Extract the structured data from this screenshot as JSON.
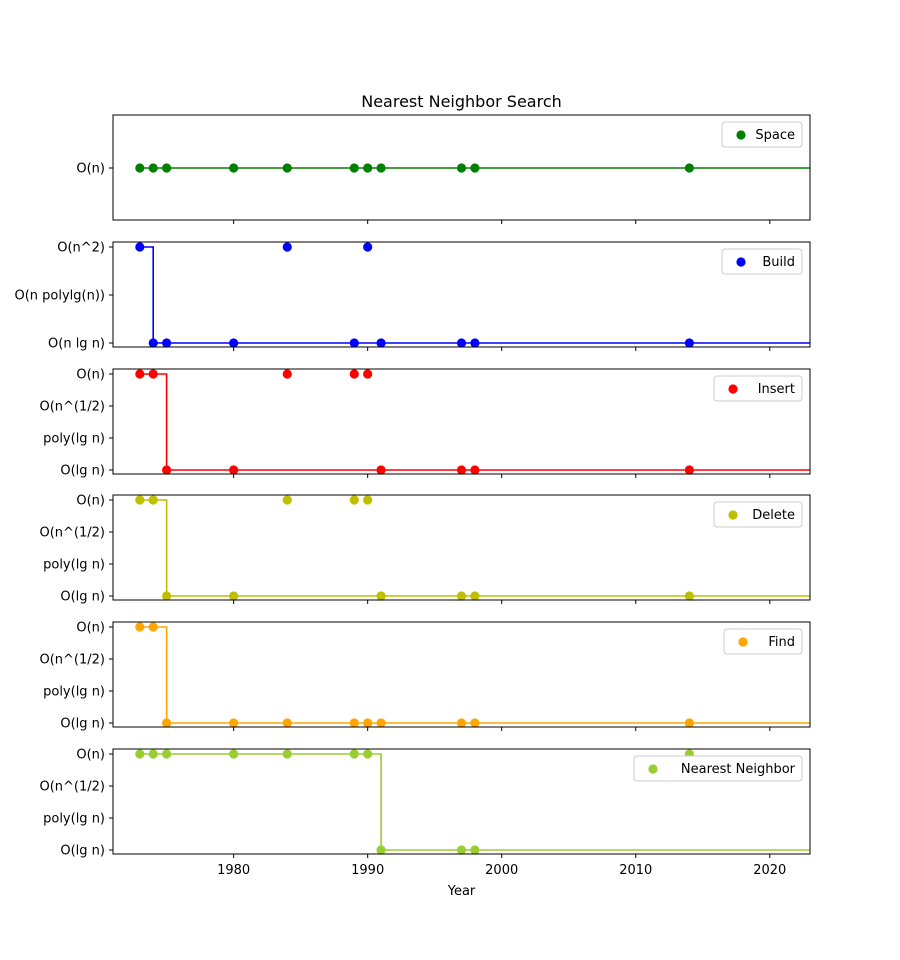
{
  "chart_data": {
    "type": "step-scatter",
    "title": "Nearest Neighbor Search",
    "xlabel": "Year",
    "xlim": [
      1971,
      2023
    ],
    "x_ticks": [
      1980,
      1990,
      2000,
      2010,
      2020
    ],
    "years": [
      1973,
      1974,
      1975,
      1980,
      1984,
      1989,
      1990,
      1991,
      1997,
      1998,
      2014
    ],
    "panels": [
      {
        "name": "Space",
        "color": "#008000",
        "levels": [
          "O(n)"
        ],
        "legend_position": "top-right",
        "points": [
          0,
          0,
          0,
          0,
          0,
          0,
          0,
          0,
          0,
          0,
          0
        ],
        "step": [
          [
            1973,
            0
          ],
          [
            2023,
            0
          ]
        ]
      },
      {
        "name": "Build",
        "color": "#0000ff",
        "levels": [
          "O(n lg n)",
          "O(n polylg(n))",
          "O(n^2)"
        ],
        "legend_position": "top-right",
        "points": [
          2,
          0,
          0,
          0,
          2,
          0,
          2,
          0,
          0,
          0,
          0
        ],
        "step": [
          [
            1973,
            2
          ],
          [
            1974,
            2
          ],
          [
            1974,
            0
          ],
          [
            2023,
            0
          ]
        ]
      },
      {
        "name": "Insert",
        "color": "#ff0000",
        "levels": [
          "O(lg n)",
          "poly(lg n)",
          "O(n^(1/2)",
          "O(n)"
        ],
        "legend_position": "top-right",
        "points": [
          3,
          3,
          0,
          0,
          3,
          3,
          3,
          0,
          0,
          0,
          0
        ],
        "step": [
          [
            1973,
            3
          ],
          [
            1975,
            3
          ],
          [
            1975,
            0
          ],
          [
            2023,
            0
          ]
        ]
      },
      {
        "name": "Delete",
        "color": "#bfbf00",
        "levels": [
          "O(lg n)",
          "poly(lg n)",
          "O(n^(1/2)",
          "O(n)"
        ],
        "legend_position": "top-right",
        "points": [
          3,
          3,
          0,
          0,
          3,
          3,
          3,
          0,
          0,
          0,
          0
        ],
        "step": [
          [
            1973,
            3
          ],
          [
            1975,
            3
          ],
          [
            1975,
            0
          ],
          [
            2023,
            0
          ]
        ]
      },
      {
        "name": "Find",
        "color": "#ffa500",
        "levels": [
          "O(lg n)",
          "poly(lg n)",
          "O(n^(1/2)",
          "O(n)"
        ],
        "legend_position": "top-right",
        "points": [
          3,
          3,
          0,
          0,
          0,
          0,
          0,
          0,
          0,
          0,
          0
        ],
        "step": [
          [
            1973,
            3
          ],
          [
            1975,
            3
          ],
          [
            1975,
            0
          ],
          [
            2023,
            0
          ]
        ]
      },
      {
        "name": "Nearest Neighbor",
        "color": "#9acd32",
        "levels": [
          "O(lg n)",
          "poly(lg n)",
          "O(n^(1/2)",
          "O(n)"
        ],
        "legend_position": "top-right",
        "points": [
          3,
          3,
          3,
          3,
          3,
          3,
          3,
          0,
          0,
          0,
          3
        ],
        "step": [
          [
            1973,
            3
          ],
          [
            1991,
            3
          ],
          [
            1991,
            0
          ],
          [
            2023,
            0
          ]
        ]
      }
    ]
  }
}
